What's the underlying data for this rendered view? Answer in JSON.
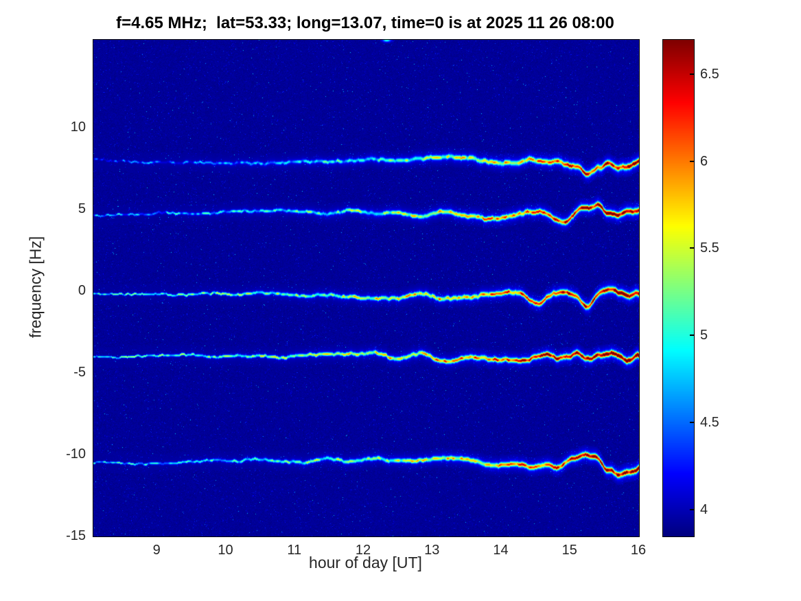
{
  "title": "f=4.65 MHz;  lat=53.33; long=13.07, time=0 is at 2025 11 26 08:00",
  "axes": {
    "xlabel": "hour of day [UT]",
    "ylabel": "frequency [Hz]",
    "x_ticks": [
      9,
      10,
      11,
      12,
      13,
      14,
      15,
      16
    ],
    "y_ticks": [
      10,
      5,
      0,
      -5,
      -10,
      -15
    ]
  },
  "colorbar": {
    "ticks": [
      4,
      4.5,
      5,
      5.5,
      6,
      6.5
    ]
  },
  "chart_data": {
    "type": "heatmap",
    "title": "f=4.65 MHz;  lat=53.33; long=13.07, time=0 is at 2025 11 26 08:00",
    "xlabel": "hour of day [UT]",
    "ylabel": "frequency [Hz]",
    "x_range_hours": [
      8.07,
      16
    ],
    "y_range_hz": [
      -15,
      15.4
    ],
    "colormap": "jet",
    "colorbar_range": [
      3.85,
      6.7
    ],
    "background_value": 3.92,
    "grid": false,
    "legend": "colorbar-right",
    "traces": [
      {
        "name": "doppler-trace-plus8hz",
        "center_hz": 8.0,
        "base_value": 4.3,
        "peak_value": 6.25
      },
      {
        "name": "doppler-trace-plus5hz",
        "center_hz": 4.8,
        "base_value": 4.55,
        "peak_value": 6.4
      },
      {
        "name": "doppler-trace-0hz",
        "center_hz": -0.3,
        "base_value": 4.95,
        "peak_value": 6.5
      },
      {
        "name": "doppler-trace-minus4hz",
        "center_hz": -4.0,
        "base_value": 5.0,
        "peak_value": 6.65
      },
      {
        "name": "doppler-trace-minus10hz",
        "center_hz": -10.4,
        "base_value": 4.75,
        "peak_value": 6.3
      }
    ],
    "notes": "Doppler spectrogram; trace intensity and wander increase after ~13 UT, strongest red segments 15-16 UT"
  }
}
